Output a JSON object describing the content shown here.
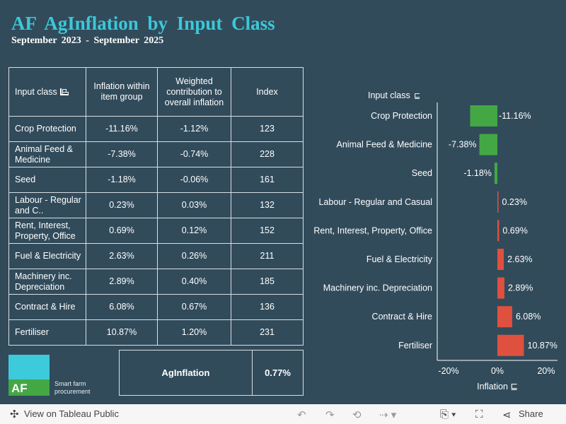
{
  "header": {
    "title": "AF AgInflation by Input Class",
    "subtitle": "September 2023 - September 2025"
  },
  "table": {
    "columns": [
      "Input class",
      "Inflation within item group",
      "Weighted contribution to overall inflation",
      "Index"
    ],
    "rows": [
      [
        "Crop Protection",
        "-11.16%",
        "-1.12%",
        "123"
      ],
      [
        "Animal Feed & Medicine",
        "-7.38%",
        "-0.74%",
        "228"
      ],
      [
        "Seed",
        "-1.18%",
        "-0.06%",
        "161"
      ],
      [
        "Labour - Regular and C..",
        "0.23%",
        "0.03%",
        "132"
      ],
      [
        "Rent, Interest, Property, Office",
        "0.69%",
        "0.12%",
        "152"
      ],
      [
        "Fuel & Electricity",
        "2.63%",
        "0.26%",
        "211"
      ],
      [
        "Machinery inc. Depreciation",
        "2.89%",
        "0.40%",
        "185"
      ],
      [
        "Contract & Hire",
        "6.08%",
        "0.67%",
        "136"
      ],
      [
        "Fertiliser",
        "10.87%",
        "1.20%",
        "231"
      ]
    ],
    "total": {
      "label": "AgInflation",
      "value": "0.77%"
    }
  },
  "logo": {
    "text": "AF",
    "tagline": "Smart farm procurement"
  },
  "colors": {
    "background": "#314b5b",
    "title": "#3cc8d8",
    "negative": "#43a843",
    "positive": "#e0503e"
  },
  "chart_data": {
    "type": "bar",
    "orientation": "horizontal",
    "ylabel": "Input class",
    "xlabel": "Inflation",
    "categories": [
      "Crop Protection",
      "Animal Feed & Medicine",
      "Seed",
      "Labour - Regular and Casual",
      "Rent, Interest, Property, Office",
      "Fuel & Electricity",
      "Machinery inc. Depreciation",
      "Contract & Hire",
      "Fertiliser"
    ],
    "values": [
      -11.16,
      -7.38,
      -1.18,
      0.23,
      0.69,
      2.63,
      2.89,
      6.08,
      10.87
    ],
    "data_labels": [
      "-11.16%",
      "-7.38%",
      "-1.18%",
      "0.23%",
      "0.69%",
      "2.63%",
      "2.89%",
      "6.08%",
      "10.87%"
    ],
    "xticks": [
      "-20%",
      "0%",
      "20%"
    ],
    "xlim": [
      -24.5,
      24.5
    ],
    "grid": false
  },
  "footer": {
    "view": "View on Tableau Public",
    "share": "Share"
  }
}
